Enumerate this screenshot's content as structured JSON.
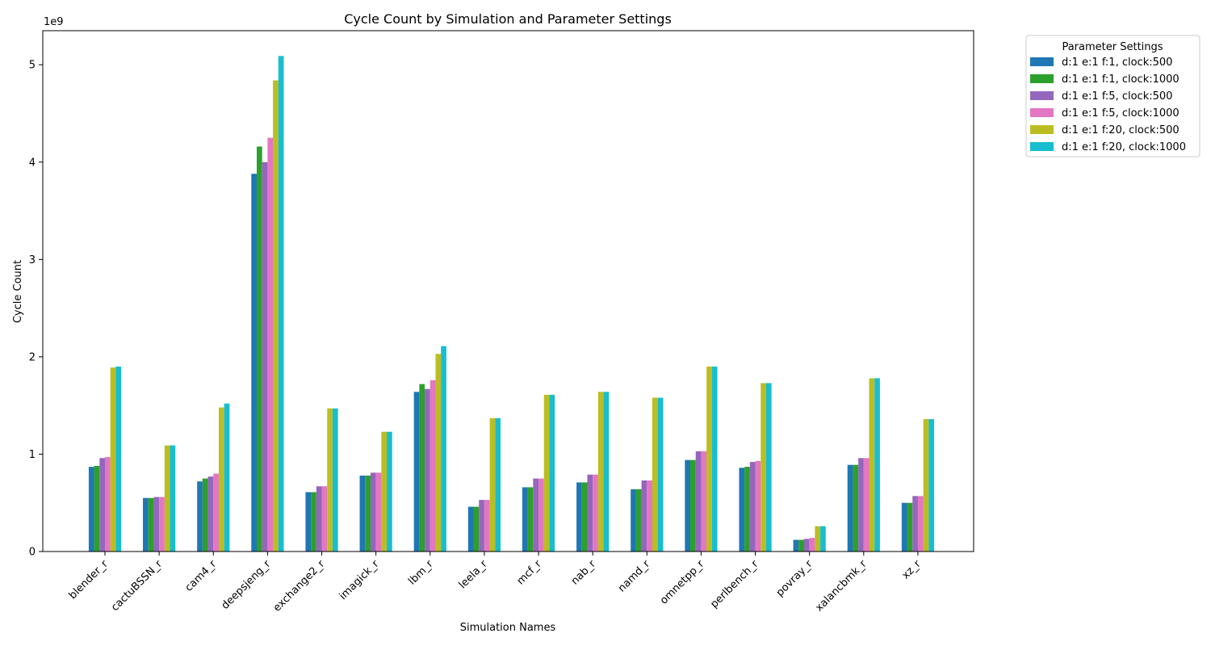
{
  "chart_data": {
    "type": "bar",
    "title": "Cycle Count by Simulation and Parameter Settings",
    "xlabel": "Simulation Names",
    "ylabel": "Cycle Count",
    "y_scale_label": "1e9",
    "ylim": [
      0,
      5.35
    ],
    "yticks": [
      "0",
      "1",
      "2",
      "3",
      "4",
      "5"
    ],
    "grid": false,
    "legend": {
      "title": "Parameter Settings",
      "placement": "outside-top-right"
    },
    "categories": [
      "blender_r",
      "cactuBSSN_r",
      "cam4_r",
      "deepsjeng_r",
      "exchange2_r",
      "imagick_r",
      "lbm_r",
      "leela_r",
      "mcf_r",
      "nab_r",
      "namd_r",
      "omnetpp_r",
      "perlbench_r",
      "povray_r",
      "xalancbmk_r",
      "xz_r"
    ],
    "series": [
      {
        "name": "d:1 e:1 f:1, clock:500",
        "color": "#1f77b4",
        "values": [
          0.87,
          0.55,
          0.72,
          3.88,
          0.61,
          0.78,
          1.64,
          0.46,
          0.66,
          0.71,
          0.64,
          0.94,
          0.86,
          0.12,
          0.89,
          0.5
        ]
      },
      {
        "name": "d:1 e:1 f:1, clock:1000",
        "color": "#2ca02c",
        "values": [
          0.88,
          0.55,
          0.75,
          4.16,
          0.61,
          0.78,
          1.72,
          0.46,
          0.66,
          0.71,
          0.64,
          0.94,
          0.87,
          0.12,
          0.89,
          0.5
        ]
      },
      {
        "name": "d:1 e:1 f:5, clock:500",
        "color": "#9467bd",
        "values": [
          0.96,
          0.56,
          0.77,
          4.0,
          0.67,
          0.81,
          1.67,
          0.53,
          0.75,
          0.79,
          0.73,
          1.03,
          0.92,
          0.13,
          0.96,
          0.57
        ]
      },
      {
        "name": "d:1 e:1 f:5, clock:1000",
        "color": "#e377c2",
        "values": [
          0.97,
          0.56,
          0.8,
          4.25,
          0.67,
          0.81,
          1.76,
          0.53,
          0.75,
          0.79,
          0.73,
          1.03,
          0.93,
          0.14,
          0.96,
          0.57
        ]
      },
      {
        "name": "d:1 e:1 f:20, clock:500",
        "color": "#bcbd22",
        "values": [
          1.89,
          1.09,
          1.48,
          4.84,
          1.47,
          1.23,
          2.03,
          1.37,
          1.61,
          1.64,
          1.58,
          1.9,
          1.73,
          0.26,
          1.78,
          1.36
        ]
      },
      {
        "name": "d:1 e:1 f:20, clock:1000",
        "color": "#17becf",
        "values": [
          1.9,
          1.09,
          1.52,
          5.09,
          1.47,
          1.23,
          2.11,
          1.37,
          1.61,
          1.64,
          1.58,
          1.9,
          1.73,
          0.26,
          1.78,
          1.36
        ]
      }
    ]
  }
}
